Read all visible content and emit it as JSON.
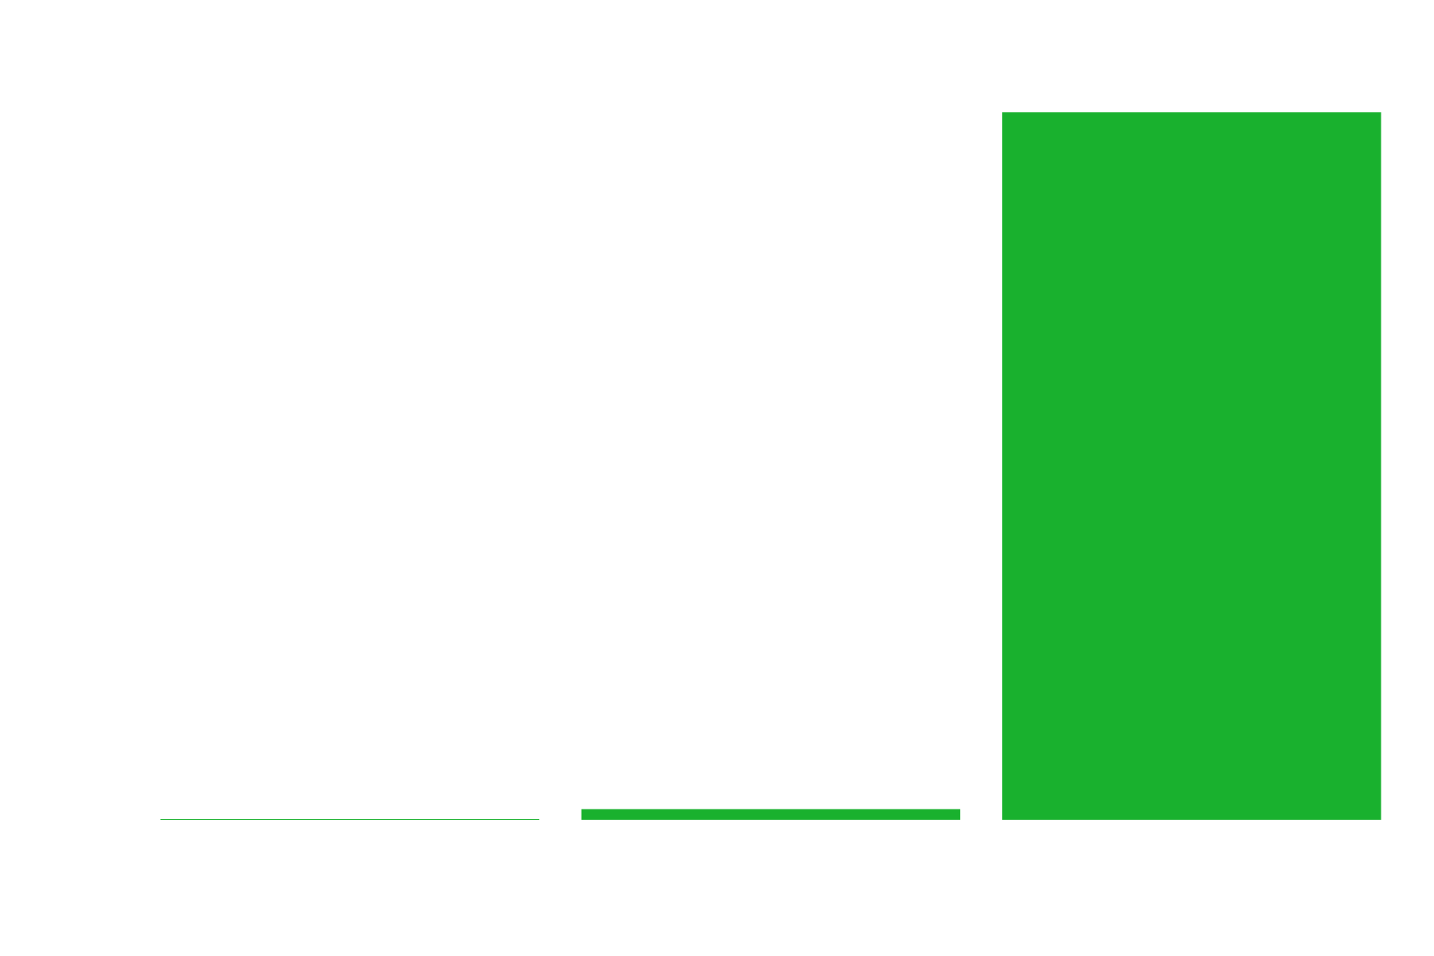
{
  "chart_data": {
    "type": "bar",
    "categories": [
      "",
      "",
      ""
    ],
    "series": [
      {
        "values": [
          0.1,
          1.5,
          100
        ]
      }
    ],
    "ylim": [
      0,
      100
    ],
    "grid": false,
    "axes_visible": false,
    "legend": "none",
    "bar_color": "#19b12e",
    "background_color": "#ffffff"
  }
}
